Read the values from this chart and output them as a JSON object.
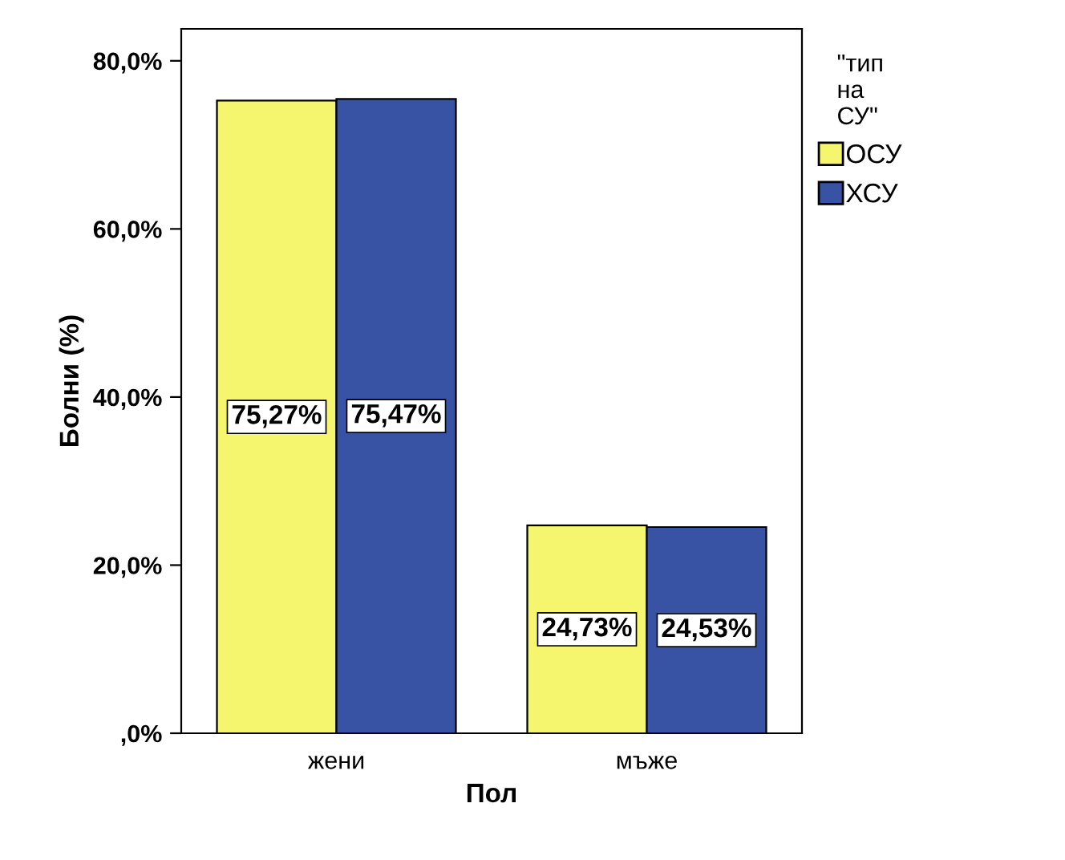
{
  "chart_data": {
    "type": "bar",
    "xlabel": "Пол",
    "ylabel": "Болни (%)",
    "legend_title": "\"тип\nна\nСУ\"",
    "categories": [
      "жени",
      "мъже"
    ],
    "series": [
      {
        "name": "ОСУ",
        "color": "#f5f56e",
        "values": [
          75.27,
          24.73
        ],
        "value_labels": [
          "75,27%",
          "24,73%"
        ]
      },
      {
        "name": "ХСУ",
        "color": "#3953a4",
        "values": [
          75.47,
          24.53
        ],
        "value_labels": [
          "75,47%",
          "24,53%"
        ]
      }
    ],
    "ylim": [
      0,
      83.8
    ],
    "yticks": [
      {
        "value": 0,
        "label": ",0%"
      },
      {
        "value": 20,
        "label": "20,0%"
      },
      {
        "value": 40,
        "label": "40,0%"
      },
      {
        "value": 60,
        "label": "60,0%"
      },
      {
        "value": 80,
        "label": "80,0%"
      }
    ],
    "grid": false,
    "legend": "right"
  }
}
